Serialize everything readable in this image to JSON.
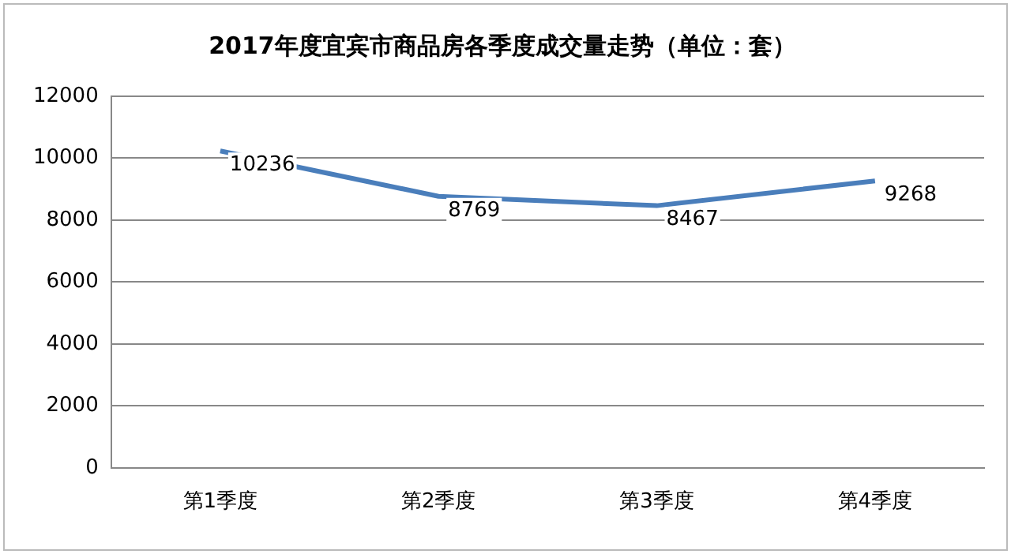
{
  "chart_data": {
    "type": "line",
    "title": "2017年度宜宾市商品房各季度成交量走势（单位：套）",
    "categories": [
      "第1季度",
      "第2季度",
      "第3季度",
      "第4季度"
    ],
    "series": [
      {
        "color": "#4a7ebb",
        "values": [
          10236,
          8769,
          8467,
          9268
        ]
      }
    ],
    "ylim": [
      0,
      12000
    ],
    "yticks": [
      0,
      2000,
      4000,
      6000,
      8000,
      10000,
      12000
    ],
    "grid": "y",
    "legend": false,
    "marker": "none",
    "line_style": "solid",
    "data_labels": true
  }
}
